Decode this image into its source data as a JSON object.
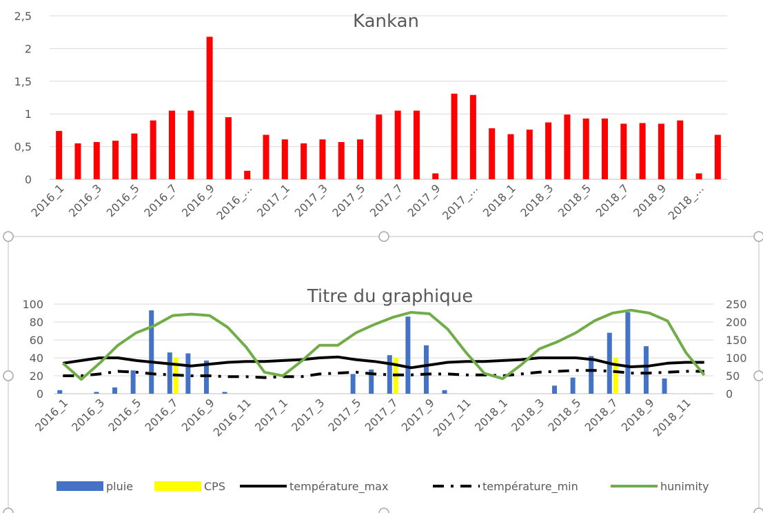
{
  "chart_data": [
    {
      "type": "bar",
      "title": "Kankan",
      "ylim": [
        0,
        2.5
      ],
      "ytick_labels": [
        "0",
        "0,5",
        "1",
        "1,5",
        "2",
        "2,5"
      ],
      "grid": true,
      "legend": "none",
      "bar_color": "#ff0000",
      "categories": [
        "2016_1",
        "2016_2",
        "2016_3",
        "2016_4",
        "2016_5",
        "2016_6",
        "2016_7",
        "2016_8",
        "2016_9",
        "2016_10",
        "2016_11",
        "2016_12",
        "2017_1",
        "2017_2",
        "2017_3",
        "2017_4",
        "2017_5",
        "2017_6",
        "2017_7",
        "2017_8",
        "2017_9",
        "2017_10",
        "2017_11",
        "2017_12",
        "2018_1",
        "2018_2",
        "2018_3",
        "2018_4",
        "2018_5",
        "2018_6",
        "2018_7",
        "2018_8",
        "2018_9",
        "2018_10",
        "2018_11",
        "2018_12"
      ],
      "values": [
        0.74,
        0.55,
        0.57,
        0.59,
        0.7,
        0.9,
        1.05,
        1.05,
        2.18,
        0.95,
        0.13,
        0.68,
        0.61,
        0.55,
        0.61,
        0.57,
        0.61,
        0.99,
        1.05,
        1.05,
        0.09,
        1.31,
        1.29,
        0.78,
        0.69,
        0.76,
        0.87,
        0.99,
        0.93,
        0.93,
        0.85,
        0.86,
        0.85,
        0.9,
        0.09,
        0.68
      ],
      "xtick_labels": [
        "2016_1",
        "2016_3",
        "2016_5",
        "2016_7",
        "2016_9",
        "2016_…",
        "2017_1",
        "2017_3",
        "2017_5",
        "2017_7",
        "2017_9",
        "2017_…",
        "2018_1",
        "2018_3",
        "2018_5",
        "2018_7",
        "2018_9",
        "2018_…"
      ]
    },
    {
      "type": "bar+line",
      "title": "Titre du graphique",
      "ylim": [
        0,
        100
      ],
      "y2lim": [
        0,
        250
      ],
      "ytick_labels": [
        "0",
        "20",
        "40",
        "60",
        "80",
        "100"
      ],
      "y2tick_labels": [
        "0",
        "50",
        "100",
        "150",
        "200",
        "250"
      ],
      "grid": true,
      "legend": "bottom",
      "categories": [
        "2016_1",
        "2016_2",
        "2016_3",
        "2016_4",
        "2016_5",
        "2016_6",
        "2016_7",
        "2016_8",
        "2016_9",
        "2016_10",
        "2016_11",
        "2016_12",
        "2017_1",
        "2017_2",
        "2017_3",
        "2017_4",
        "2017_5",
        "2017_6",
        "2017_7",
        "2017_8",
        "2017_9",
        "2017_10",
        "2017_11",
        "2017_12",
        "2018_1",
        "2018_2",
        "2018_3",
        "2018_4",
        "2018_5",
        "2018_6",
        "2018_7",
        "2018_8",
        "2018_9",
        "2018_10",
        "2018_11",
        "2018_12"
      ],
      "xtick_labels": [
        "2016_1",
        "2016_3",
        "2016_5",
        "2016_7",
        "2016_9",
        "2016_11",
        "2017_1",
        "2017_3",
        "2017_5",
        "2017_7",
        "2017_9",
        "2017_11",
        "2018_1",
        "2018_3",
        "2018_5",
        "2018_7",
        "2018_9",
        "2018_11"
      ],
      "series": [
        {
          "name": "pluie",
          "kind": "bar",
          "axis": "left",
          "color": "#4472c4",
          "values": [
            4,
            0,
            2,
            7,
            26,
            93,
            46,
            45,
            37,
            2,
            0,
            0,
            0,
            0,
            0,
            0,
            22,
            27,
            43,
            86,
            54,
            4,
            0,
            0,
            0,
            0,
            0,
            9,
            18,
            42,
            68,
            91,
            53,
            17,
            0,
            0
          ]
        },
        {
          "name": "CPS",
          "kind": "bar",
          "axis": "left",
          "color": "#ffff00",
          "values": [
            0,
            0,
            0,
            0,
            0,
            0,
            40,
            0,
            0,
            0,
            0,
            0,
            0,
            0,
            0,
            0,
            0,
            0,
            40,
            0,
            0,
            0,
            0,
            0,
            0,
            0,
            0,
            0,
            0,
            0,
            40,
            0,
            0,
            0,
            0,
            0
          ]
        },
        {
          "name": "température_max",
          "kind": "line",
          "axis": "left",
          "color": "#000000",
          "dash": "solid",
          "values": [
            34,
            37,
            40,
            40,
            37,
            35,
            33,
            31,
            33,
            35,
            36,
            36,
            37,
            38,
            40,
            41,
            38,
            36,
            33,
            29,
            32,
            35,
            36,
            36,
            37,
            38,
            40,
            40,
            40,
            38,
            33,
            30,
            31,
            34,
            35,
            35
          ]
        },
        {
          "name": "température_min",
          "kind": "line",
          "axis": "left",
          "color": "#000000",
          "dash": "dashdot",
          "values": [
            20,
            20,
            22,
            25,
            24,
            22,
            21,
            20,
            20,
            19,
            19,
            18,
            19,
            19,
            22,
            23,
            24,
            22,
            21,
            21,
            22,
            22,
            21,
            21,
            20,
            22,
            24,
            25,
            26,
            26,
            25,
            23,
            23,
            24,
            25,
            25
          ]
        },
        {
          "name": "hunimity",
          "kind": "line",
          "axis": "right",
          "color": "#70ad47",
          "dash": "solid",
          "values": [
            85,
            40,
            85,
            135,
            170,
            190,
            218,
            222,
            218,
            185,
            130,
            60,
            50,
            90,
            135,
            135,
            170,
            193,
            213,
            227,
            223,
            180,
            115,
            57,
            42,
            80,
            125,
            145,
            170,
            203,
            225,
            233,
            225,
            203,
            115,
            52
          ]
        }
      ]
    }
  ]
}
